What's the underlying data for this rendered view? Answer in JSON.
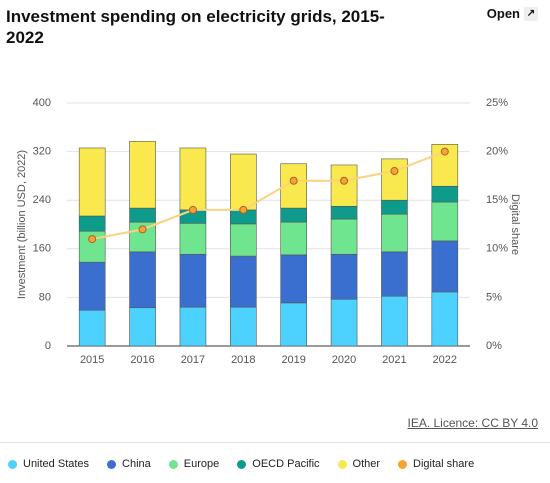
{
  "chart_data": {
    "type": "stacked-bar-line",
    "title": "Investment spending on electricity grids, 2015-2022",
    "open_button": "Open",
    "source": "IEA. Licence: CC BY 4.0",
    "y_label": "Investment (billion USD, 2022)",
    "y2_label": "Digital share",
    "categories": [
      "2015",
      "2016",
      "2017",
      "2018",
      "2019",
      "2020",
      "2021",
      "2022"
    ],
    "series": [
      {
        "name": "United States",
        "color": "#4dd2ff",
        "values": [
          59,
          63,
          64,
          64,
          71,
          77,
          82,
          89
        ]
      },
      {
        "name": "China",
        "color": "#3b6fcf",
        "values": [
          79,
          92,
          87,
          84,
          79,
          74,
          73,
          84
        ]
      },
      {
        "name": "Europe",
        "color": "#70e58f",
        "values": [
          51,
          49,
          51,
          53,
          54,
          58,
          62,
          64
        ]
      },
      {
        "name": "OECD Pacific",
        "color": "#0e9b8c",
        "values": [
          25,
          23,
          22,
          23,
          23,
          21,
          23,
          26
        ]
      },
      {
        "name": "Other",
        "color": "#f9e94f",
        "values": [
          112,
          110,
          102,
          92,
          73,
          68,
          68,
          69
        ]
      },
      {
        "name": "Digital share",
        "color": "#f4a531",
        "axis": "y2",
        "values": [
          11,
          12,
          14,
          14,
          17,
          17,
          18,
          20
        ]
      }
    ],
    "ylim": [
      0,
      400
    ],
    "yticks": [
      0,
      80,
      160,
      240,
      320,
      400
    ],
    "y2lim": [
      0,
      25
    ],
    "y2ticks": [
      {
        "value": 0,
        "label": "0%"
      },
      {
        "value": 5,
        "label": "5%"
      },
      {
        "value": 10,
        "label": "10%"
      },
      {
        "value": 15,
        "label": "15%"
      },
      {
        "value": 20,
        "label": "20%"
      },
      {
        "value": 25,
        "label": "25%"
      }
    ],
    "grid": true
  }
}
